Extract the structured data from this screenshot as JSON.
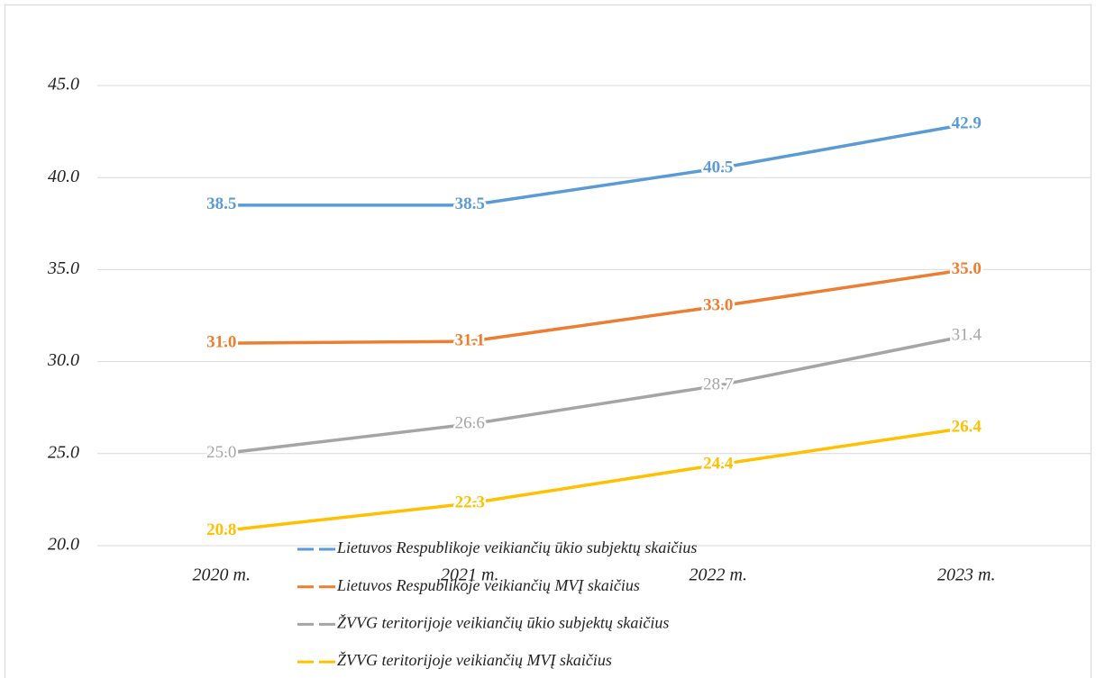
{
  "chart_data": {
    "type": "line",
    "categories": [
      "2020 m.",
      "2021 m.",
      "2022 m.",
      "2023 m."
    ],
    "series": [
      {
        "name": "Lietuvos Respublikoje veikiančių ūkio subjektų skaičius",
        "color": "#5b9bd5",
        "values": [
          38.5,
          38.5,
          40.5,
          42.9
        ],
        "value_labels": [
          "38.5",
          "38.5",
          "40.5",
          "42.9"
        ]
      },
      {
        "name": "Lietuvos Respublikoje veikiančių MVĮ skaičius",
        "color": "#ed7d31",
        "values": [
          31.0,
          31.1,
          33.0,
          35.0
        ],
        "value_labels": [
          "31.0",
          "31.1",
          "33.0",
          "35.0"
        ]
      },
      {
        "name": "ŽVVG teritorijoje veikiančių ūkio subjektų skaičius",
        "color": "#a5a5a5",
        "values": [
          25.0,
          26.6,
          28.7,
          31.4
        ],
        "value_labels": [
          "25.0",
          "26.6",
          "28.7",
          "31.4"
        ]
      },
      {
        "name": "ŽVVG teritorijoje veikiančių MVĮ skaičius",
        "color": "#ffc000",
        "values": [
          20.8,
          22.3,
          24.4,
          26.4
        ],
        "value_labels": [
          "20.8",
          "22.3",
          "24.4",
          "26.4"
        ]
      }
    ],
    "ylim": [
      20,
      45
    ],
    "yticks": [
      {
        "value": 20,
        "label": "20.0"
      },
      {
        "value": 25,
        "label": "25.0"
      },
      {
        "value": 30,
        "label": "30.0"
      },
      {
        "value": 35,
        "label": "35.0"
      },
      {
        "value": 40,
        "label": "40.0"
      },
      {
        "value": 45,
        "label": "45.0"
      }
    ],
    "grid": true
  }
}
